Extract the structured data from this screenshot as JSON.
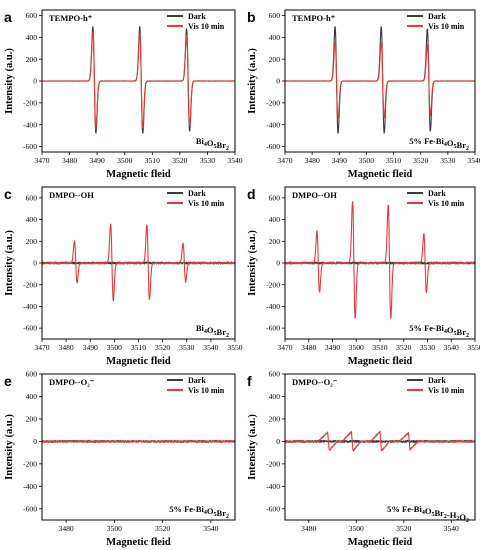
{
  "figure_title": "",
  "colors": {
    "dark": "#3a3a3a",
    "vis": "#e8383b"
  },
  "chart_data": [
    {
      "id": "a",
      "type": "line",
      "letter": "a",
      "title": "TEMPO-h⁺",
      "sample": {
        "base": "Bi",
        "sub1": "4",
        "mid": "O",
        "sub2": "5",
        "end": "Br",
        "sub3": "2"
      },
      "xlabel": "Magnetic fleid",
      "ylabel": "Intensity (a.u.)",
      "xlim": [
        3470,
        3540
      ],
      "ylim": [
        -650,
        650
      ],
      "xticks": [
        3470,
        3480,
        3490,
        3500,
        3510,
        3520,
        3530,
        3540
      ],
      "yticks": [
        -600,
        -400,
        -200,
        0,
        200,
        400,
        600
      ],
      "legend": [
        "Dark",
        "Vis 10 min"
      ],
      "series": [
        {
          "name": "Dark",
          "color_key": "dark",
          "peaks": [
            {
              "x": 3489,
              "up": 500,
              "down": 480
            },
            {
              "x": 3506,
              "up": 500,
              "down": 480
            },
            {
              "x": 3523,
              "up": 480,
              "down": 460
            }
          ]
        },
        {
          "name": "Vis 10 min",
          "color_key": "vis",
          "peaks": [
            {
              "x": 3489,
              "up": 450,
              "down": 440
            },
            {
              "x": 3506,
              "up": 440,
              "down": 430
            },
            {
              "x": 3523,
              "up": 420,
              "down": 410
            }
          ]
        }
      ]
    },
    {
      "id": "b",
      "type": "line",
      "letter": "b",
      "title": "TEMPO-h⁺",
      "sample": {
        "base": "5% Fe-Bi",
        "sub1": "4",
        "mid": "O",
        "sub2": "5",
        "end": "Br",
        "sub3": "2"
      },
      "xlabel": "Magnetic fleid",
      "ylabel": "Intensity (a.u.)",
      "xlim": [
        3470,
        3540
      ],
      "ylim": [
        -650,
        650
      ],
      "xticks": [
        3470,
        3480,
        3490,
        3500,
        3510,
        3520,
        3530,
        3540
      ],
      "yticks": [
        -600,
        -400,
        -200,
        0,
        200,
        400,
        600
      ],
      "legend": [
        "Dark",
        "Vis 10 min"
      ],
      "series": [
        {
          "name": "Dark",
          "color_key": "dark",
          "peaks": [
            {
              "x": 3489,
              "up": 500,
              "down": 480
            },
            {
              "x": 3506,
              "up": 500,
              "down": 480
            },
            {
              "x": 3523,
              "up": 480,
              "down": 460
            }
          ]
        },
        {
          "name": "Vis 10 min",
          "color_key": "vis",
          "peaks": [
            {
              "x": 3489,
              "up": 350,
              "down": 340
            },
            {
              "x": 3506,
              "up": 350,
              "down": 340
            },
            {
              "x": 3523,
              "up": 330,
              "down": 320
            }
          ]
        }
      ]
    },
    {
      "id": "c",
      "type": "line",
      "letter": "c",
      "title": "DMPO-·OH",
      "sample": {
        "base": "Bi",
        "sub1": "4",
        "mid": "O",
        "sub2": "5",
        "end": "Br",
        "sub3": "2"
      },
      "xlabel": "Magnetic fleid",
      "ylabel": "Intensity (a.u.)",
      "xlim": [
        3470,
        3550
      ],
      "ylim": [
        -700,
        700
      ],
      "xticks": [
        3470,
        3480,
        3490,
        3500,
        3510,
        3520,
        3530,
        3540,
        3550
      ],
      "yticks": [
        -600,
        -400,
        -200,
        0,
        200,
        400,
        600
      ],
      "legend": [
        "Dark",
        "Vis 10 min"
      ],
      "series": [
        {
          "name": "Dark",
          "color_key": "dark",
          "peaks": []
        },
        {
          "name": "Vis 10 min",
          "color_key": "vis",
          "peaks": [
            {
              "x": 3484,
              "up": 200,
              "down": 180
            },
            {
              "x": 3499,
              "up": 360,
              "down": 350
            },
            {
              "x": 3514,
              "up": 350,
              "down": 340
            },
            {
              "x": 3529,
              "up": 180,
              "down": 175
            }
          ]
        }
      ]
    },
    {
      "id": "d",
      "type": "line",
      "letter": "d",
      "title": "DMPO-·OH",
      "sample": {
        "base": "5% Fe-Bi",
        "sub1": "4",
        "mid": "O",
        "sub2": "5",
        "end": "Br",
        "sub3": "2"
      },
      "xlabel": "Magnetic fleid",
      "ylabel": "Intensity (a.u.)",
      "xlim": [
        3470,
        3550
      ],
      "ylim": [
        -700,
        700
      ],
      "xticks": [
        3470,
        3480,
        3490,
        3500,
        3510,
        3520,
        3530,
        3540,
        3550
      ],
      "yticks": [
        -600,
        -400,
        -200,
        0,
        200,
        400,
        600
      ],
      "legend": [
        "Dark",
        "Vis 10 min"
      ],
      "series": [
        {
          "name": "Dark",
          "color_key": "dark",
          "peaks": []
        },
        {
          "name": "Vis 10 min",
          "color_key": "vis",
          "peaks": [
            {
              "x": 3484,
              "up": 300,
              "down": 270
            },
            {
              "x": 3499,
              "up": 570,
              "down": 510
            },
            {
              "x": 3514,
              "up": 540,
              "down": 510
            },
            {
              "x": 3529,
              "up": 270,
              "down": 270
            }
          ]
        }
      ]
    },
    {
      "id": "e",
      "type": "line",
      "letter": "e",
      "title": "DMPO-·O₂⁻",
      "sample": {
        "base": "5% Fe-Bi",
        "sub1": "4",
        "mid": "O",
        "sub2": "5",
        "end": "Br",
        "sub3": "2"
      },
      "xlabel": "Magnetic fleid",
      "ylabel": "Intensity (a.u.)",
      "xlim": [
        3470,
        3550
      ],
      "ylim": [
        -700,
        600
      ],
      "xticks": [
        3480,
        3500,
        3520,
        3540
      ],
      "yticks": [
        -600,
        -400,
        -200,
        0,
        200,
        400,
        600
      ],
      "legend": [
        "Dark",
        "Vis 10 min"
      ],
      "series": [
        {
          "name": "Dark",
          "color_key": "dark",
          "peaks": []
        },
        {
          "name": "Vis 10 min",
          "color_key": "vis",
          "peaks": []
        }
      ]
    },
    {
      "id": "f",
      "type": "line",
      "letter": "f",
      "title": "DMPO-·O₂⁻",
      "sample": {
        "base": "5% Fe-Bi",
        "sub1": "4",
        "mid": "O",
        "sub2": "5",
        "end": "Br",
        "sub3": "2",
        "suffix": "-H",
        "sub4": "2",
        "suffix2": "O",
        "sub5": "2"
      },
      "xlabel": "Magnetic fleid",
      "ylabel": "Intensity (a.u.)",
      "xlim": [
        3470,
        3550
      ],
      "ylim": [
        -700,
        600
      ],
      "xticks": [
        3480,
        3500,
        3520,
        3540
      ],
      "yticks": [
        -600,
        -400,
        -200,
        0,
        200,
        400,
        600
      ],
      "legend": [
        "Dark",
        "Vis 10 min"
      ],
      "series": [
        {
          "name": "Dark",
          "color_key": "dark",
          "peaks": []
        },
        {
          "name": "Vis 10 min",
          "color_key": "vis",
          "sawtooth": [
            {
              "x": 3488,
              "amp": 80
            },
            {
              "x": 3498,
              "amp": 85
            },
            {
              "x": 3510,
              "amp": 85
            },
            {
              "x": 3522,
              "amp": 75
            }
          ]
        }
      ]
    }
  ]
}
